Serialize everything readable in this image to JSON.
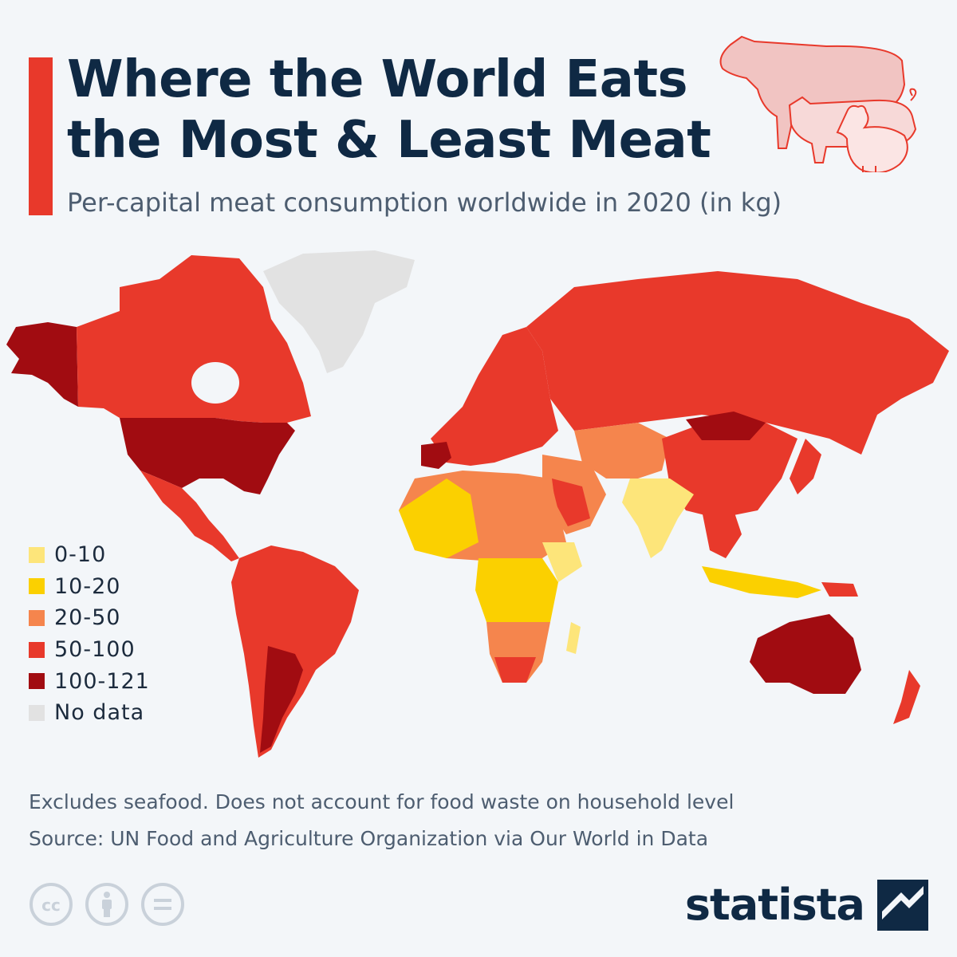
{
  "header": {
    "title": "Where the World Eats the Most & Least Meat",
    "subtitle": "Per-capital meat consumption worldwide in 2020 (in kg)"
  },
  "colors": {
    "accent": "#e8392b",
    "title": "#0f2944",
    "background": "#f3f6f9",
    "bin_0_10": "#fde57a",
    "bin_10_20": "#fbd000",
    "bin_20_50": "#f5854d",
    "bin_50_100": "#e8392b",
    "bin_100_121": "#a10c11",
    "no_data": "#e2e2e2"
  },
  "legend": {
    "items": [
      {
        "label": "0-10",
        "color": "#fde57a"
      },
      {
        "label": "10-20",
        "color": "#fbd000"
      },
      {
        "label": "20-50",
        "color": "#f5854d"
      },
      {
        "label": "50-100",
        "color": "#e8392b"
      },
      {
        "label": "100-121",
        "color": "#a10c11"
      },
      {
        "label": "No data",
        "color": "#e2e2e2"
      }
    ]
  },
  "footer": {
    "note": "Excludes seafood. Does not account for food waste on household level",
    "source": "Source: UN Food and Agriculture Organization via Our World in Data",
    "brand": "statista",
    "license_icons": [
      "cc-icon",
      "attribution-icon",
      "no-derivatives-icon"
    ]
  },
  "decoration": {
    "animals": [
      "cow-icon",
      "pig-icon",
      "chicken-icon"
    ]
  }
}
